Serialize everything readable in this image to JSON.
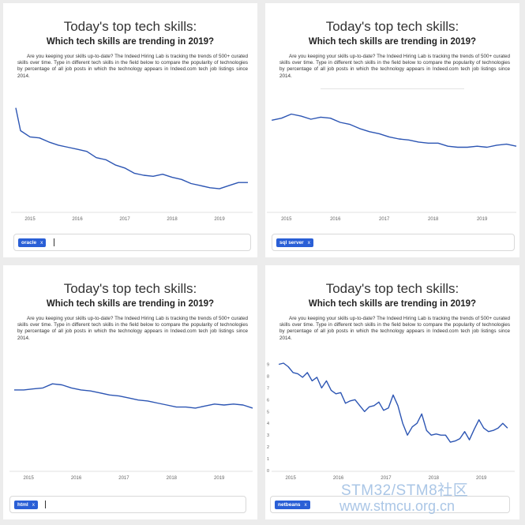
{
  "panels": [
    {
      "title": "Today's top tech skills:",
      "subtitle": "Which tech skills are trending in 2019?",
      "description": "Are you keeping your skills up-to-date? The Indeed Hiring Lab is tracking the trends of 500+ curated skills over time. Type in different tech skills in the field below to compare the popularity of technologies by percentage of all job posts in which the technology appears in Indeed.com tech job listings since 2014.",
      "chip_label": "oracle",
      "chip_remove": "x",
      "chart_data": {
        "type": "line",
        "x_labels": [
          "2015",
          "2016",
          "2017",
          "2018",
          "2019"
        ],
        "x": [
          2014.7,
          2014.8,
          2015.0,
          2015.2,
          2015.4,
          2015.6,
          2015.8,
          2016.0,
          2016.2,
          2016.4,
          2016.6,
          2016.8,
          2017.0,
          2017.2,
          2017.4,
          2017.6,
          2017.8,
          2018.0,
          2018.2,
          2018.4,
          2018.6,
          2018.8,
          2019.0,
          2019.2,
          2019.4,
          2019.6
        ],
        "values": [
          1.0,
          0.78,
          0.72,
          0.71,
          0.67,
          0.64,
          0.62,
          0.6,
          0.58,
          0.52,
          0.5,
          0.45,
          0.42,
          0.37,
          0.35,
          0.34,
          0.36,
          0.33,
          0.31,
          0.27,
          0.25,
          0.23,
          0.22,
          0.25,
          0.28,
          0.28
        ],
        "ylim": [
          0,
          1.05
        ],
        "grid": false,
        "color": "#2c55b3"
      }
    },
    {
      "title": "Today's top tech skills:",
      "subtitle": "Which tech skills are trending in 2019?",
      "description": "Are you keeping your skills up-to-date? The Indeed Hiring Lab is tracking the trends of 500+ curated skills over time. Type in different tech skills in the field below to compare the popularity of technologies by percentage of all job posts in which the technology appears in Indeed.com tech job listings since 2014.",
      "chip_label": "sql server",
      "chip_remove": "x",
      "chart_data": {
        "type": "line",
        "x_labels": [
          "2015",
          "2016",
          "2017",
          "2018",
          "2019"
        ],
        "x": [
          2014.7,
          2014.9,
          2015.1,
          2015.3,
          2015.5,
          2015.7,
          2015.9,
          2016.1,
          2016.3,
          2016.5,
          2016.7,
          2016.9,
          2017.1,
          2017.3,
          2017.5,
          2017.7,
          2017.9,
          2018.1,
          2018.3,
          2018.5,
          2018.7,
          2018.9,
          2019.1,
          2019.3,
          2019.5,
          2019.7
        ],
        "values": [
          0.88,
          0.9,
          0.94,
          0.92,
          0.89,
          0.91,
          0.9,
          0.86,
          0.84,
          0.8,
          0.77,
          0.75,
          0.72,
          0.7,
          0.69,
          0.67,
          0.66,
          0.66,
          0.63,
          0.62,
          0.62,
          0.63,
          0.62,
          0.64,
          0.65,
          0.63
        ],
        "ylim": [
          0,
          1.05
        ],
        "grid": false,
        "color": "#2c55b3"
      }
    },
    {
      "title": "Today's top tech skills:",
      "subtitle": "Which tech skills are trending in 2019?",
      "description": "Are you keeping your skills up-to-date? The Indeed Hiring Lab is tracking the trends of 500+ curated skills over time. Type in different tech skills in the field below to compare the popularity of technologies by percentage of all job posts in which the technology appears in Indeed.com tech job listings since 2014.",
      "chip_label": "html",
      "chip_remove": "x",
      "chart_data": {
        "type": "line",
        "x_labels": [
          "2015",
          "2016",
          "2017",
          "2018",
          "2019"
        ],
        "x": [
          2014.7,
          2014.9,
          2015.1,
          2015.3,
          2015.5,
          2015.7,
          2015.9,
          2016.1,
          2016.3,
          2016.5,
          2016.7,
          2016.9,
          2017.1,
          2017.3,
          2017.5,
          2017.7,
          2017.9,
          2018.1,
          2018.3,
          2018.5,
          2018.7,
          2018.9,
          2019.1,
          2019.3,
          2019.5,
          2019.7
        ],
        "values": [
          0.8,
          0.8,
          0.81,
          0.82,
          0.86,
          0.85,
          0.82,
          0.8,
          0.79,
          0.77,
          0.75,
          0.74,
          0.72,
          0.7,
          0.69,
          0.67,
          0.65,
          0.63,
          0.63,
          0.62,
          0.64,
          0.66,
          0.65,
          0.66,
          0.65,
          0.62
        ],
        "ylim": [
          0,
          1.05
        ],
        "grid": false,
        "color": "#2c55b3"
      }
    },
    {
      "title": "Today's top tech skills:",
      "subtitle": "Which tech skills are trending in 2019?",
      "description": "Are you keeping your skills up-to-date? The Indeed Hiring Lab is tracking the trends of 500+ curated skills over time. Type in different tech skills in the field below to compare the popularity of technologies by percentage of all job posts in which the technology appears in Indeed.com tech job listings since 2014.",
      "chip_label": "netbeans",
      "chip_remove": "x",
      "chart_data": {
        "type": "line",
        "x_labels": [
          "2015",
          "2016",
          "2017",
          "2018",
          "2019"
        ],
        "y_ticks": [
          "0",
          "1",
          "2",
          "3",
          "4",
          "5",
          "6",
          "7",
          "8",
          "9"
        ],
        "x": [
          2014.75,
          2014.85,
          2014.95,
          2015.05,
          2015.15,
          2015.25,
          2015.35,
          2015.45,
          2015.55,
          2015.65,
          2015.75,
          2015.85,
          2015.95,
          2016.05,
          2016.15,
          2016.25,
          2016.35,
          2016.45,
          2016.55,
          2016.65,
          2016.75,
          2016.85,
          2016.95,
          2017.05,
          2017.15,
          2017.25,
          2017.35,
          2017.45,
          2017.55,
          2017.65,
          2017.75,
          2017.85,
          2017.95,
          2018.05,
          2018.15,
          2018.25,
          2018.35,
          2018.45,
          2018.55,
          2018.65,
          2018.75,
          2018.85,
          2018.95,
          2019.05,
          2019.15,
          2019.25,
          2019.35,
          2019.45,
          2019.55
        ],
        "values": [
          9.0,
          9.1,
          8.8,
          8.3,
          8.2,
          7.9,
          8.3,
          7.6,
          7.9,
          7.0,
          7.6,
          6.8,
          6.5,
          6.6,
          5.7,
          5.9,
          6.0,
          5.5,
          5.0,
          5.4,
          5.5,
          5.8,
          5.1,
          5.3,
          6.4,
          5.5,
          4.0,
          3.0,
          3.7,
          4.0,
          4.8,
          3.4,
          3.0,
          3.1,
          3.0,
          3.0,
          2.4,
          2.5,
          2.7,
          3.3,
          2.6,
          3.5,
          4.3,
          3.6,
          3.3,
          3.4,
          3.6,
          4.0,
          3.6
        ],
        "ylim": [
          0,
          9.5
        ],
        "grid": false,
        "color": "#2c55b3"
      }
    }
  ],
  "watermark": {
    "line1": "STM32/STM8社区",
    "line2": "www.stmcu.org.cn"
  }
}
